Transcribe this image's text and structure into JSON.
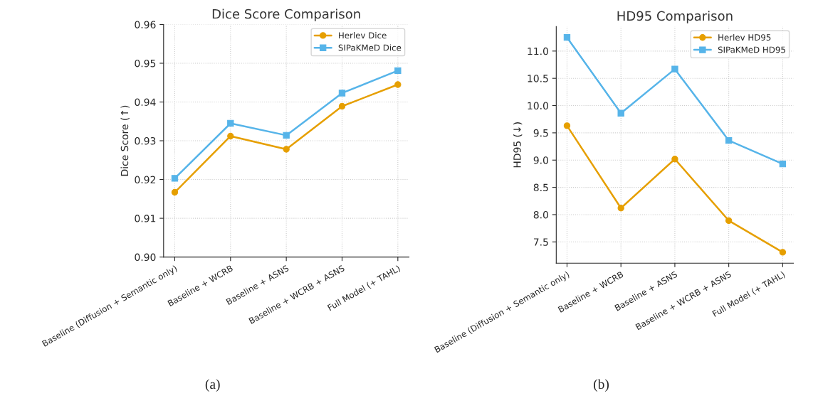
{
  "chart_data": [
    {
      "type": "line",
      "title": "Dice Score Comparison",
      "ylabel": "Dice Score (↑)",
      "categories": [
        "Baseline (Diffusion + Semantic only)",
        "Baseline + WCRB",
        "Baseline + ASNS",
        "Baseline + WCRB + ASNS",
        "Full Model (+ TAHL)"
      ],
      "series": [
        {
          "name": "Herlev Dice",
          "color": "#e69f00",
          "marker": "circle",
          "values": [
            0.9167,
            0.9312,
            0.9278,
            0.9389,
            0.9445
          ]
        },
        {
          "name": "SIPaKMeD Dice",
          "color": "#56b4e9",
          "marker": "square",
          "values": [
            0.9203,
            0.9345,
            0.9314,
            0.9423,
            0.9481
          ]
        }
      ],
      "ylim": [
        0.9,
        0.96
      ],
      "yticks": [
        {
          "value": 0.9,
          "label": "0.90"
        },
        {
          "value": 0.91,
          "label": "0.91"
        },
        {
          "value": 0.92,
          "label": "0.92"
        },
        {
          "value": 0.93,
          "label": "0.93"
        },
        {
          "value": 0.94,
          "label": "0.94"
        },
        {
          "value": 0.95,
          "label": "0.95"
        },
        {
          "value": 0.96,
          "label": "0.96"
        }
      ],
      "grid": true,
      "legend": "top right",
      "annotations": [
        "(a)"
      ]
    },
    {
      "type": "line",
      "title": "HD95 Comparison",
      "ylabel": "HD95 (↓)",
      "categories": [
        "Baseline (Diffusion + Semantic only)",
        "Baseline + WCRB",
        "Baseline + ASNS",
        "Baseline + WCRB + ASNS",
        "Full Model (+ TAHL)"
      ],
      "series": [
        {
          "name": "Herlev HD95",
          "color": "#e69f00",
          "marker": "circle",
          "values": [
            9.63,
            8.12,
            9.02,
            7.89,
            7.31
          ]
        },
        {
          "name": "SIPaKMeD HD95",
          "color": "#56b4e9",
          "marker": "square",
          "values": [
            11.25,
            9.86,
            10.67,
            9.36,
            8.93
          ]
        }
      ],
      "ylim": [
        7.11,
        11.45
      ],
      "yticks": [
        7.5,
        {
          "value": 8,
          "label": "8.0"
        },
        8.5,
        {
          "value": 9,
          "label": "9.0"
        },
        9.5,
        {
          "value": 10,
          "label": "10.0"
        },
        10.5,
        {
          "value": 11,
          "label": "11.0"
        }
      ],
      "grid": true,
      "legend": "top right",
      "annotations": [
        "(b)"
      ]
    }
  ]
}
